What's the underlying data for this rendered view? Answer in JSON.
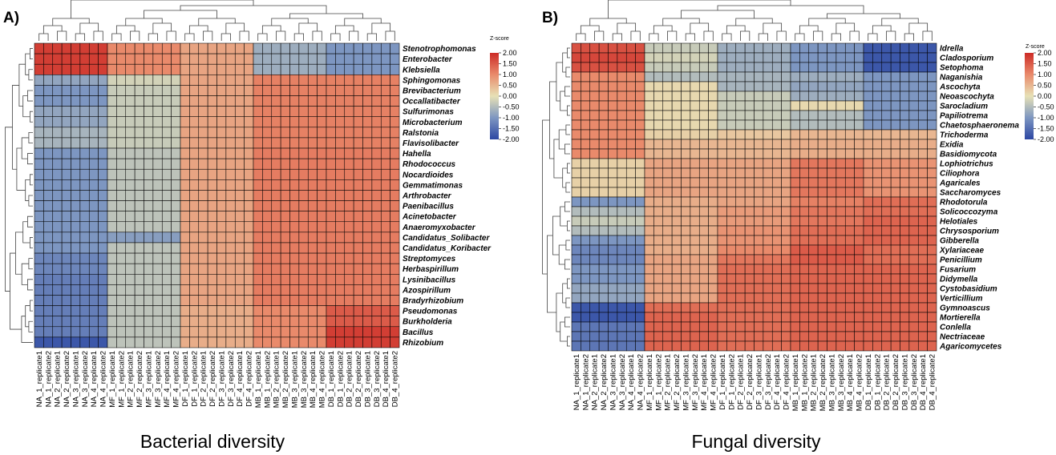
{
  "chart_data": [
    {
      "type": "heatmap",
      "panel_label": "A)",
      "caption": "Bacterial diversity",
      "colorbar": {
        "title": "Z-score",
        "ticks": [
          "2.00",
          "1.50",
          "1.00",
          "0.50",
          "0.00",
          "-0.50",
          "-1.00",
          "-1.50",
          "-2.00"
        ],
        "range": [
          -2,
          2
        ],
        "colors": [
          "#2c47a3",
          "#7d96c1",
          "#e7e1b6",
          "#e98a6b",
          "#cc2b26"
        ]
      },
      "columns": [
        "NA_1_replicate1",
        "NA_1_replicate2",
        "NA_2_replicate1",
        "NA_2_replicate2",
        "NA_3_replicate1",
        "NA_3_replicate2",
        "NA_4_replicate1",
        "NA_4_replicate2",
        "MF_1_replicate1",
        "MF_1_replicate2",
        "MF_2_replicate1",
        "MF_2_replicate2",
        "MF_3_replicate1",
        "MF_3_replicate2",
        "MF_4_replicate1",
        "MF_4_replicate2",
        "DF_1_replicate1",
        "DF_1_replicate2",
        "DF_2_replicate1",
        "DF_2_replicate2",
        "DF_3_replicate1",
        "DF_3_replicate2",
        "DF_4_replicate1",
        "DF_4_replicate2",
        "MB_1_replicate1",
        "MB_1_replicate2",
        "MB_2_replicate1",
        "MB_2_replicate2",
        "MB_3_replicate1",
        "MB_3_replicate2",
        "MB_4_replicate1",
        "MB_4_replicate2",
        "DB_1_replicate1",
        "DB_1_replicate2",
        "DB_2_replicate1",
        "DB_2_replicate2",
        "DB_3_replicate1",
        "DB_3_replicate2",
        "DB_4_replicate1",
        "DB_4_replicate2"
      ],
      "rows": [
        "Stenotrophomonas",
        "Enterobacter",
        "Klebsiella",
        "Sphingomonas",
        "Brevibacterium",
        "Occallatibacter",
        "Sulfurimonas",
        "Microbacterium",
        "Ralstonia",
        "Flavisolibacter",
        "Hahella",
        "Rhodococcus",
        "Nocardioides",
        "Gemmatimonas",
        "Arthrobacter",
        "Paenibacillus",
        "Acinetobacter",
        "Anaeromyxobacter",
        "Candidatus_Solibacter",
        "Candidatus_Koribacter",
        "Streptomyces",
        "Herbaspirillum",
        "Lysinibacillus",
        "Azospirillum",
        "Bradyrhizobium",
        "Pseudomonas",
        "Burkholderia",
        "Bacillus",
        "Rhizobium"
      ],
      "group_values": [
        [
          1.8,
          1.0,
          0.7,
          -0.7,
          -1.0
        ],
        [
          1.8,
          1.0,
          0.7,
          -0.7,
          -1.0
        ],
        [
          1.8,
          1.0,
          0.7,
          -0.7,
          -1.0
        ],
        [
          -0.8,
          -0.2,
          0.7,
          1.1,
          1.1
        ],
        [
          -1.0,
          -0.3,
          0.7,
          1.1,
          1.1
        ],
        [
          -1.0,
          -0.3,
          0.7,
          1.1,
          1.1
        ],
        [
          -0.8,
          -0.3,
          0.7,
          1.1,
          1.1
        ],
        [
          -0.8,
          -0.3,
          0.7,
          1.1,
          1.1
        ],
        [
          -0.6,
          -0.3,
          0.7,
          1.1,
          1.1
        ],
        [
          -0.6,
          -0.3,
          0.7,
          1.1,
          1.1
        ],
        [
          -1.0,
          -0.4,
          0.7,
          1.15,
          1.15
        ],
        [
          -1.0,
          -0.4,
          0.7,
          1.15,
          1.15
        ],
        [
          -1.0,
          -0.4,
          0.7,
          1.15,
          1.15
        ],
        [
          -1.0,
          -0.4,
          0.7,
          1.15,
          1.15
        ],
        [
          -1.0,
          -0.4,
          0.7,
          1.15,
          1.15
        ],
        [
          -1.0,
          -0.4,
          0.7,
          1.15,
          1.15
        ],
        [
          -1.0,
          -0.4,
          0.7,
          1.15,
          1.15
        ],
        [
          -1.0,
          -0.4,
          0.7,
          1.15,
          1.15
        ],
        [
          -1.0,
          -0.9,
          0.7,
          1.15,
          1.15
        ],
        [
          -1.0,
          -0.4,
          0.7,
          1.15,
          1.15
        ],
        [
          -1.2,
          -0.4,
          0.7,
          1.15,
          1.15
        ],
        [
          -1.2,
          -0.4,
          0.7,
          1.15,
          1.15
        ],
        [
          -1.3,
          -0.4,
          0.7,
          1.15,
          1.15
        ],
        [
          -1.3,
          -0.4,
          0.7,
          1.15,
          1.15
        ],
        [
          -1.3,
          -0.4,
          0.7,
          1.15,
          1.15
        ],
        [
          -1.3,
          -0.4,
          0.6,
          1.0,
          1.5
        ],
        [
          -1.3,
          -0.4,
          0.6,
          1.0,
          1.5
        ],
        [
          -1.3,
          -0.4,
          0.6,
          1.0,
          1.8
        ],
        [
          -1.8,
          -0.4,
          0.6,
          1.0,
          1.8
        ]
      ]
    },
    {
      "type": "heatmap",
      "panel_label": "B)",
      "caption": "Fungal diversity",
      "colorbar": {
        "title": "Z-score",
        "ticks": [
          "2.00",
          "1.50",
          "1.00",
          "0.50",
          "0.00",
          "-0.50",
          "-1.00",
          "-1.50",
          "-2.00"
        ],
        "range": [
          -2,
          2
        ],
        "colors": [
          "#2c47a3",
          "#7d96c1",
          "#e7e1b6",
          "#e98a6b",
          "#cc2b26"
        ]
      },
      "columns": [
        "NA_1_replicate1",
        "NA_1_replicate2",
        "NA_2_replicate1",
        "NA_2_replicate2",
        "NA_3_replicate1",
        "NA_3_replicate2",
        "NA_4_replicate1",
        "NA_4_replicate2",
        "MF_1_replicate1",
        "MF_1_replicate2",
        "MF_2_replicate1",
        "MF_2_replicate2",
        "MF_3_replicate1",
        "MF_3_replicate2",
        "MF_4_replicate1",
        "MF_4_replicate2",
        "DF_1_replicate1",
        "DF_1_replicate2",
        "DF_2_replicate1",
        "DF_2_replicate2",
        "DF_3_replicate1",
        "DF_3_replicate2",
        "DF_4_replicate1",
        "DF_4_replicate2",
        "MB_1_replicate1",
        "MB_1_replicate2",
        "MB_2_replicate1",
        "MB_2_replicate2",
        "MB_3_replicate1",
        "MB_3_replicate2",
        "MB_4_replicate1",
        "MB_4_replicate2",
        "DB_1_replicate1",
        "DB_1_replicate2",
        "DB_2_replicate1",
        "DB_2_replicate2",
        "DB_3_replicate1",
        "DB_3_replicate2",
        "DB_4_replicate1",
        "DB_4_replicate2"
      ],
      "rows": [
        "Idrella",
        "Cladosporium",
        "Setophoma",
        "Naganishia",
        "Ascochyta",
        "Neoascochyta",
        "Sarocladium",
        "Papiliotrema",
        "Chaetosphaeronema",
        "Trichoderma",
        "Exidia",
        "Basidiomycota",
        "Lophiotrichus",
        "Ciliophora",
        "Agaricales",
        "Saccharomyces",
        "Rhodotorula",
        "Solicoccozyma",
        "Helotiales",
        "Chrysosporium",
        "Gibberella",
        "Xylariaceae",
        "Penicillium",
        "Fusarium",
        "Didymella",
        "Cystobasidium",
        "Verticillium",
        "Gymnoascus",
        "Mortierella",
        "Conlella",
        "Nectriaceae",
        "Agaricomycetes"
      ],
      "group_values": [
        [
          1.6,
          -0.3,
          -0.7,
          -1.0,
          -1.8
        ],
        [
          1.7,
          -0.2,
          -0.7,
          -1.0,
          -1.8
        ],
        [
          1.6,
          -0.3,
          -0.7,
          -1.0,
          -1.8
        ],
        [
          1.0,
          -0.5,
          -0.6,
          -0.7,
          -1.0
        ],
        [
          1.0,
          0.1,
          -0.6,
          -0.8,
          -1.0
        ],
        [
          1.0,
          0.1,
          -0.3,
          -0.7,
          -1.0
        ],
        [
          1.0,
          0.1,
          -0.3,
          0.1,
          -1.0
        ],
        [
          1.0,
          0.1,
          -0.3,
          -0.5,
          -1.0
        ],
        [
          1.0,
          0.1,
          -0.3,
          -0.5,
          -1.0
        ],
        [
          1.0,
          0.2,
          0.3,
          0.5,
          0.5
        ],
        [
          1.0,
          0.5,
          0.5,
          0.6,
          0.6
        ],
        [
          1.0,
          0.5,
          0.5,
          0.6,
          0.6
        ],
        [
          0.2,
          0.7,
          0.7,
          1.2,
          0.9
        ],
        [
          0.2,
          0.7,
          0.7,
          1.2,
          0.9
        ],
        [
          0.2,
          0.7,
          0.7,
          1.2,
          0.9
        ],
        [
          0.2,
          0.7,
          0.7,
          1.2,
          0.9
        ],
        [
          -1.0,
          0.6,
          0.7,
          1.1,
          1.3
        ],
        [
          -0.5,
          0.6,
          0.8,
          1.2,
          1.3
        ],
        [
          -0.3,
          0.6,
          0.8,
          1.2,
          1.4
        ],
        [
          -0.5,
          0.6,
          0.9,
          1.3,
          1.4
        ],
        [
          -1.0,
          0.6,
          0.9,
          1.3,
          1.4
        ],
        [
          -1.2,
          0.6,
          1.0,
          1.5,
          1.3
        ],
        [
          -1.2,
          0.7,
          1.2,
          1.5,
          1.3
        ],
        [
          -1.0,
          0.7,
          1.3,
          1.4,
          1.4
        ],
        [
          -1.0,
          0.7,
          1.3,
          1.4,
          1.4
        ],
        [
          -0.8,
          0.7,
          1.3,
          1.4,
          1.4
        ],
        [
          -0.8,
          0.7,
          1.3,
          1.4,
          1.4
        ],
        [
          -1.8,
          1.3,
          1.3,
          1.4,
          1.4
        ],
        [
          -1.8,
          1.4,
          1.3,
          1.4,
          1.4
        ],
        [
          -1.4,
          1.4,
          1.3,
          1.4,
          1.4
        ],
        [
          -1.4,
          1.4,
          1.3,
          1.4,
          1.4
        ],
        [
          -1.4,
          1.4,
          1.3,
          1.4,
          1.4
        ]
      ]
    }
  ]
}
